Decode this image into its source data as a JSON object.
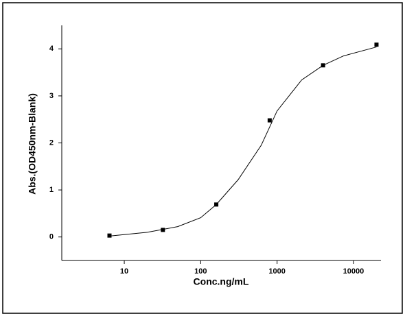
{
  "chart_data": {
    "type": "scatter",
    "xlabel": "Conc.ng/mL",
    "ylabel": "Abs.(OD450nm-Blank)",
    "x": [
      6.4,
      32,
      160,
      800,
      4000,
      20000
    ],
    "values": [
      0.03,
      0.15,
      0.69,
      2.48,
      3.65,
      4.09
    ],
    "color": "#000000",
    "fit": {
      "x": [
        6.4,
        20,
        50,
        100,
        160,
        310,
        620,
        1000,
        2100,
        4000,
        7400,
        20000
      ],
      "values": [
        0.02,
        0.1,
        0.22,
        0.41,
        0.69,
        1.22,
        1.95,
        2.68,
        3.34,
        3.65,
        3.85,
        4.04
      ]
    },
    "xscale": "log",
    "xlim": [
      1.52,
      22900
    ],
    "xticks": [
      10,
      100,
      1000,
      10000
    ],
    "ylim": [
      -0.5,
      4.5
    ],
    "yticks": [
      0,
      1,
      2,
      3,
      4
    ]
  }
}
